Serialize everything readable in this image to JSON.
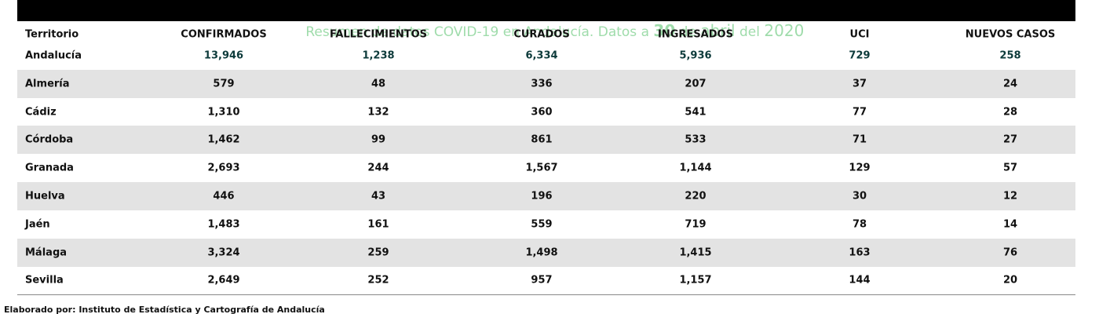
{
  "header": {
    "title": [
      "Resumen de datos COVID-19 en Andalucía. Datos a ",
      "30",
      " de ",
      "abril",
      " del ",
      "2020"
    ]
  },
  "table": {
    "columns": [
      "Territorio",
      "CONFIRMADOS",
      "FALLECIMIENTOS",
      "CURADOS",
      "INGRESADOS",
      "UCI",
      "NUEVOS CASOS"
    ],
    "rows": [
      [
        "Andalucía",
        "13,946",
        "1,238",
        "6,334",
        "5,936",
        "729",
        "258"
      ],
      [
        "Almería",
        "579",
        "48",
        "336",
        "207",
        "37",
        "24"
      ],
      [
        "Cádiz",
        "1,310",
        "132",
        "360",
        "541",
        "77",
        "28"
      ],
      [
        "Córdoba",
        "1,462",
        "99",
        "861",
        "533",
        "71",
        "27"
      ],
      [
        "Granada",
        "2,693",
        "244",
        "1,567",
        "1,144",
        "129",
        "57"
      ],
      [
        "Huelva",
        "446",
        "43",
        "196",
        "220",
        "30",
        "12"
      ],
      [
        "Jaén",
        "1,483",
        "161",
        "559",
        "719",
        "78",
        "14"
      ],
      [
        "Málaga",
        "3,324",
        "259",
        "1,498",
        "1,415",
        "163",
        "76"
      ],
      [
        "Sevilla",
        "2,649",
        "252",
        "957",
        "1,157",
        "144",
        "20"
      ]
    ]
  },
  "footer": {
    "source": "Elaborado por: Instituto de Estadística y Cartografía de Andalucía"
  }
}
